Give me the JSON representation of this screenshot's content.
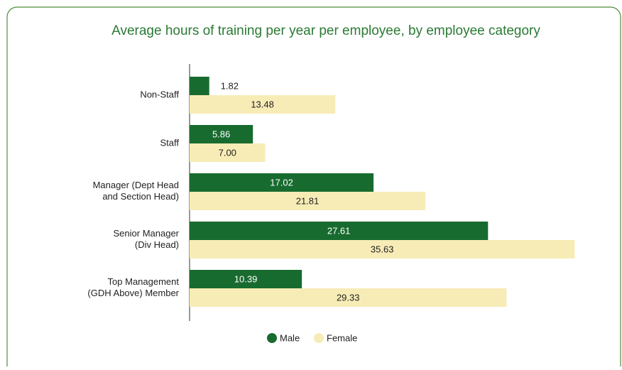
{
  "chart_data": {
    "type": "bar",
    "orientation": "horizontal",
    "title": "Average hours of training per year per employee, by employee category",
    "categories": [
      "Non-Staff",
      "Staff",
      "Manager (Dept Head\nand Section Head)",
      "Senior Manager\n(Div Head)",
      "Top Management\n(GDH Above) Member"
    ],
    "series": [
      {
        "name": "Male",
        "color": "#186b2f",
        "values": [
          1.82,
          5.86,
          17.02,
          27.61,
          10.39
        ],
        "value_labels": [
          "1.82",
          "5.86",
          "17.02",
          "27.61",
          "10.39"
        ]
      },
      {
        "name": "Female",
        "color": "#f7ecb6",
        "values": [
          13.48,
          7,
          21.81,
          35.63,
          29.33
        ],
        "value_labels": [
          "13.48",
          "7.00",
          "21.81",
          "35.63",
          "29.33"
        ]
      }
    ],
    "xlim": [
      0,
      36
    ],
    "legend": "bottom"
  }
}
